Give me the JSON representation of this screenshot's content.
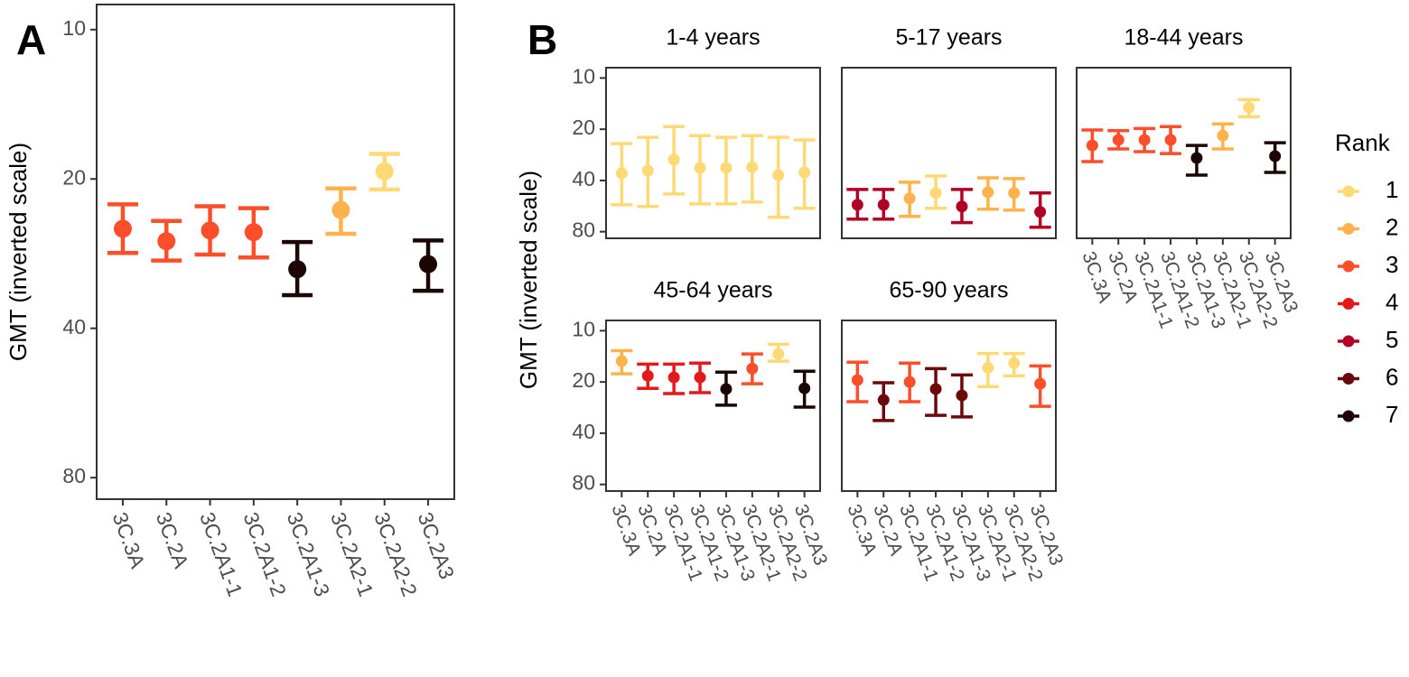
{
  "chart_data": [
    {
      "type": "errorbar",
      "panel_label": "A",
      "ylabel": "GMT (inverted scale)",
      "categories": [
        "3C.3A",
        "3C.2A",
        "3C.2A1-1",
        "3C.2A1-2",
        "3C.2A1-3",
        "3C.2A2-1",
        "3C.2A2-2",
        "3C.2A3"
      ],
      "values": [
        25.2,
        26.7,
        25.4,
        25.6,
        30.4,
        23.1,
        19.3,
        29.7
      ],
      "lower": [
        22.5,
        24.3,
        22.7,
        22.9,
        26.8,
        20.9,
        17.8,
        26.6
      ],
      "upper": [
        28.2,
        29.2,
        28.4,
        28.8,
        34.3,
        25.8,
        21.0,
        33.6
      ],
      "ranks": [
        3,
        3,
        3,
        3,
        7,
        2,
        1,
        7
      ],
      "ylim": [
        8.9,
        88.4
      ],
      "yticks": [
        10,
        20,
        40,
        80
      ],
      "y_scale": "log",
      "y_inverted": true
    },
    {
      "type": "facet-errorbar",
      "panel_label": "B",
      "ylabel": "GMT (inverted scale)",
      "categories": [
        "3C.3A",
        "3C.2A",
        "3C.2A1-1",
        "3C.2A1-2",
        "3C.2A1-3",
        "3C.2A2-1",
        "3C.2A2-2",
        "3C.2A3"
      ],
      "ylim": [
        8.7,
        87.5
      ],
      "yticks": [
        10,
        20,
        40,
        80
      ],
      "y_scale": "log",
      "y_inverted": true,
      "facets": [
        {
          "title": "1-4 years",
          "values": [
            36.3,
            35.0,
            30.2,
            33.7,
            33.7,
            33.4,
            37.2,
            35.9
          ],
          "lower": [
            24.3,
            22.3,
            19.3,
            21.8,
            22.3,
            21.8,
            22.3,
            23.1
          ],
          "upper": [
            55.6,
            56.9,
            48.0,
            54.9,
            54.9,
            53.6,
            65.9,
            58.3
          ],
          "ranks": [
            1,
            1,
            1,
            1,
            1,
            1,
            1,
            1
          ]
        },
        {
          "title": "5-17 years",
          "values": [
            55.6,
            55.6,
            51.0,
            47.4,
            56.9,
            46.9,
            47.4,
            61.2
          ],
          "lower": [
            45.2,
            45.2,
            41.0,
            37.6,
            45.2,
            38.6,
            39.0,
            47.4
          ],
          "upper": [
            67.5,
            67.5,
            65.1,
            58.3,
            70.8,
            59.0,
            59.7,
            75.3
          ],
          "ranks": [
            5,
            5,
            2,
            1,
            5,
            2,
            2,
            5
          ]
        },
        {
          "title": "18-44 years",
          "values": [
            24.9,
            23.1,
            23.1,
            23.1,
            29.5,
            21.8,
            14.9,
            28.8
          ],
          "lower": [
            20.2,
            20.4,
            19.8,
            19.3,
            24.9,
            18.6,
            13.4,
            24.0
          ],
          "upper": [
            31.0,
            26.1,
            27.1,
            27.8,
            37.2,
            26.1,
            16.9,
            35.9
          ],
          "ranks": [
            3,
            3,
            3,
            3,
            7,
            2,
            1,
            7
          ]
        },
        {
          "title": "45-64 years",
          "values": [
            15.1,
            18.4,
            18.8,
            18.8,
            22.0,
            16.7,
            13.7,
            21.8
          ],
          "lower": [
            13.1,
            15.7,
            15.7,
            15.5,
            17.5,
            13.7,
            12.0,
            17.3
          ],
          "upper": [
            17.9,
            21.8,
            23.4,
            23.1,
            27.4,
            20.5,
            15.1,
            28.1
          ],
          "ranks": [
            2,
            4,
            4,
            4,
            7,
            3,
            1,
            7
          ]
        },
        {
          "title": "65-90 years",
          "values": [
            19.5,
            25.5,
            20.0,
            22.0,
            24.0,
            16.5,
            15.5,
            20.5
          ],
          "lower": [
            15.3,
            20.2,
            15.5,
            16.7,
            18.2,
            13.6,
            13.6,
            16.1
          ],
          "upper": [
            26.1,
            33.7,
            26.1,
            31.4,
            32.1,
            21.3,
            18.4,
            27.8
          ],
          "ranks": [
            3,
            6,
            3,
            6,
            6,
            1,
            1,
            3
          ]
        }
      ],
      "legend": {
        "title": "Rank",
        "ranks": [
          1,
          2,
          3,
          4,
          5,
          6,
          7
        ],
        "colors": [
          "#fed976",
          "#feb24c",
          "#fc4e2a",
          "#e31a1c",
          "#b10026",
          "#6b0a0a",
          "#1c0505"
        ]
      }
    }
  ]
}
